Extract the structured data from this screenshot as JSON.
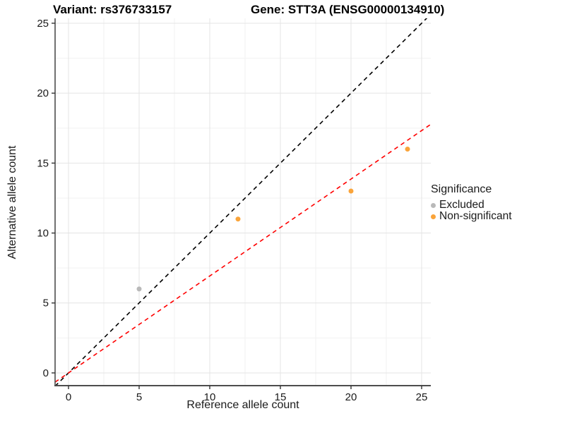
{
  "chart_data": {
    "type": "scatter",
    "title_left": "Variant: rs376733157",
    "title_right": "Gene: STT3A (ENSG00000134910)",
    "xlabel": "Reference allele count",
    "ylabel": "Alternative allele count",
    "xlim": [
      -0.95,
      25.65
    ],
    "ylim": [
      -0.91,
      25.35
    ],
    "x_ticks": [
      0,
      5,
      10,
      15,
      20,
      25
    ],
    "y_ticks": [
      0,
      5,
      10,
      15,
      20,
      25
    ],
    "x_minor_ticks": [
      2.5,
      7.5,
      12.5,
      17.5,
      22.5
    ],
    "y_minor_ticks": [
      2.5,
      7.5,
      12.5,
      17.5,
      22.5
    ],
    "grid": {
      "major_color": "#e4e4e4",
      "minor_color": "#f2f2f2",
      "background": "#ffffff"
    },
    "axis_color": "#4d4d4d",
    "tick_label_color": "#1a1a1a",
    "legend": {
      "title": "Significance",
      "position": "right",
      "items": [
        {
          "label": "Excluded",
          "color": "#b9b9b9"
        },
        {
          "label": "Non-significant",
          "color": "#faa43a"
        }
      ]
    },
    "series": [
      {
        "name": "Excluded",
        "color": "#b9b9b9",
        "points": [
          {
            "x": 5,
            "y": 6
          }
        ]
      },
      {
        "name": "Non-significant",
        "color": "#faa43a",
        "points": [
          {
            "x": 12,
            "y": 11
          },
          {
            "x": 20,
            "y": 13
          },
          {
            "x": 24,
            "y": 16
          }
        ]
      }
    ],
    "lines": [
      {
        "name": "identity-line",
        "color": "#000000",
        "style": "dashed",
        "slope": 1.0,
        "intercept": 0
      },
      {
        "name": "fit-line",
        "color": "#ff0000",
        "style": "dashed",
        "slope": 0.693,
        "intercept": 0
      }
    ]
  }
}
